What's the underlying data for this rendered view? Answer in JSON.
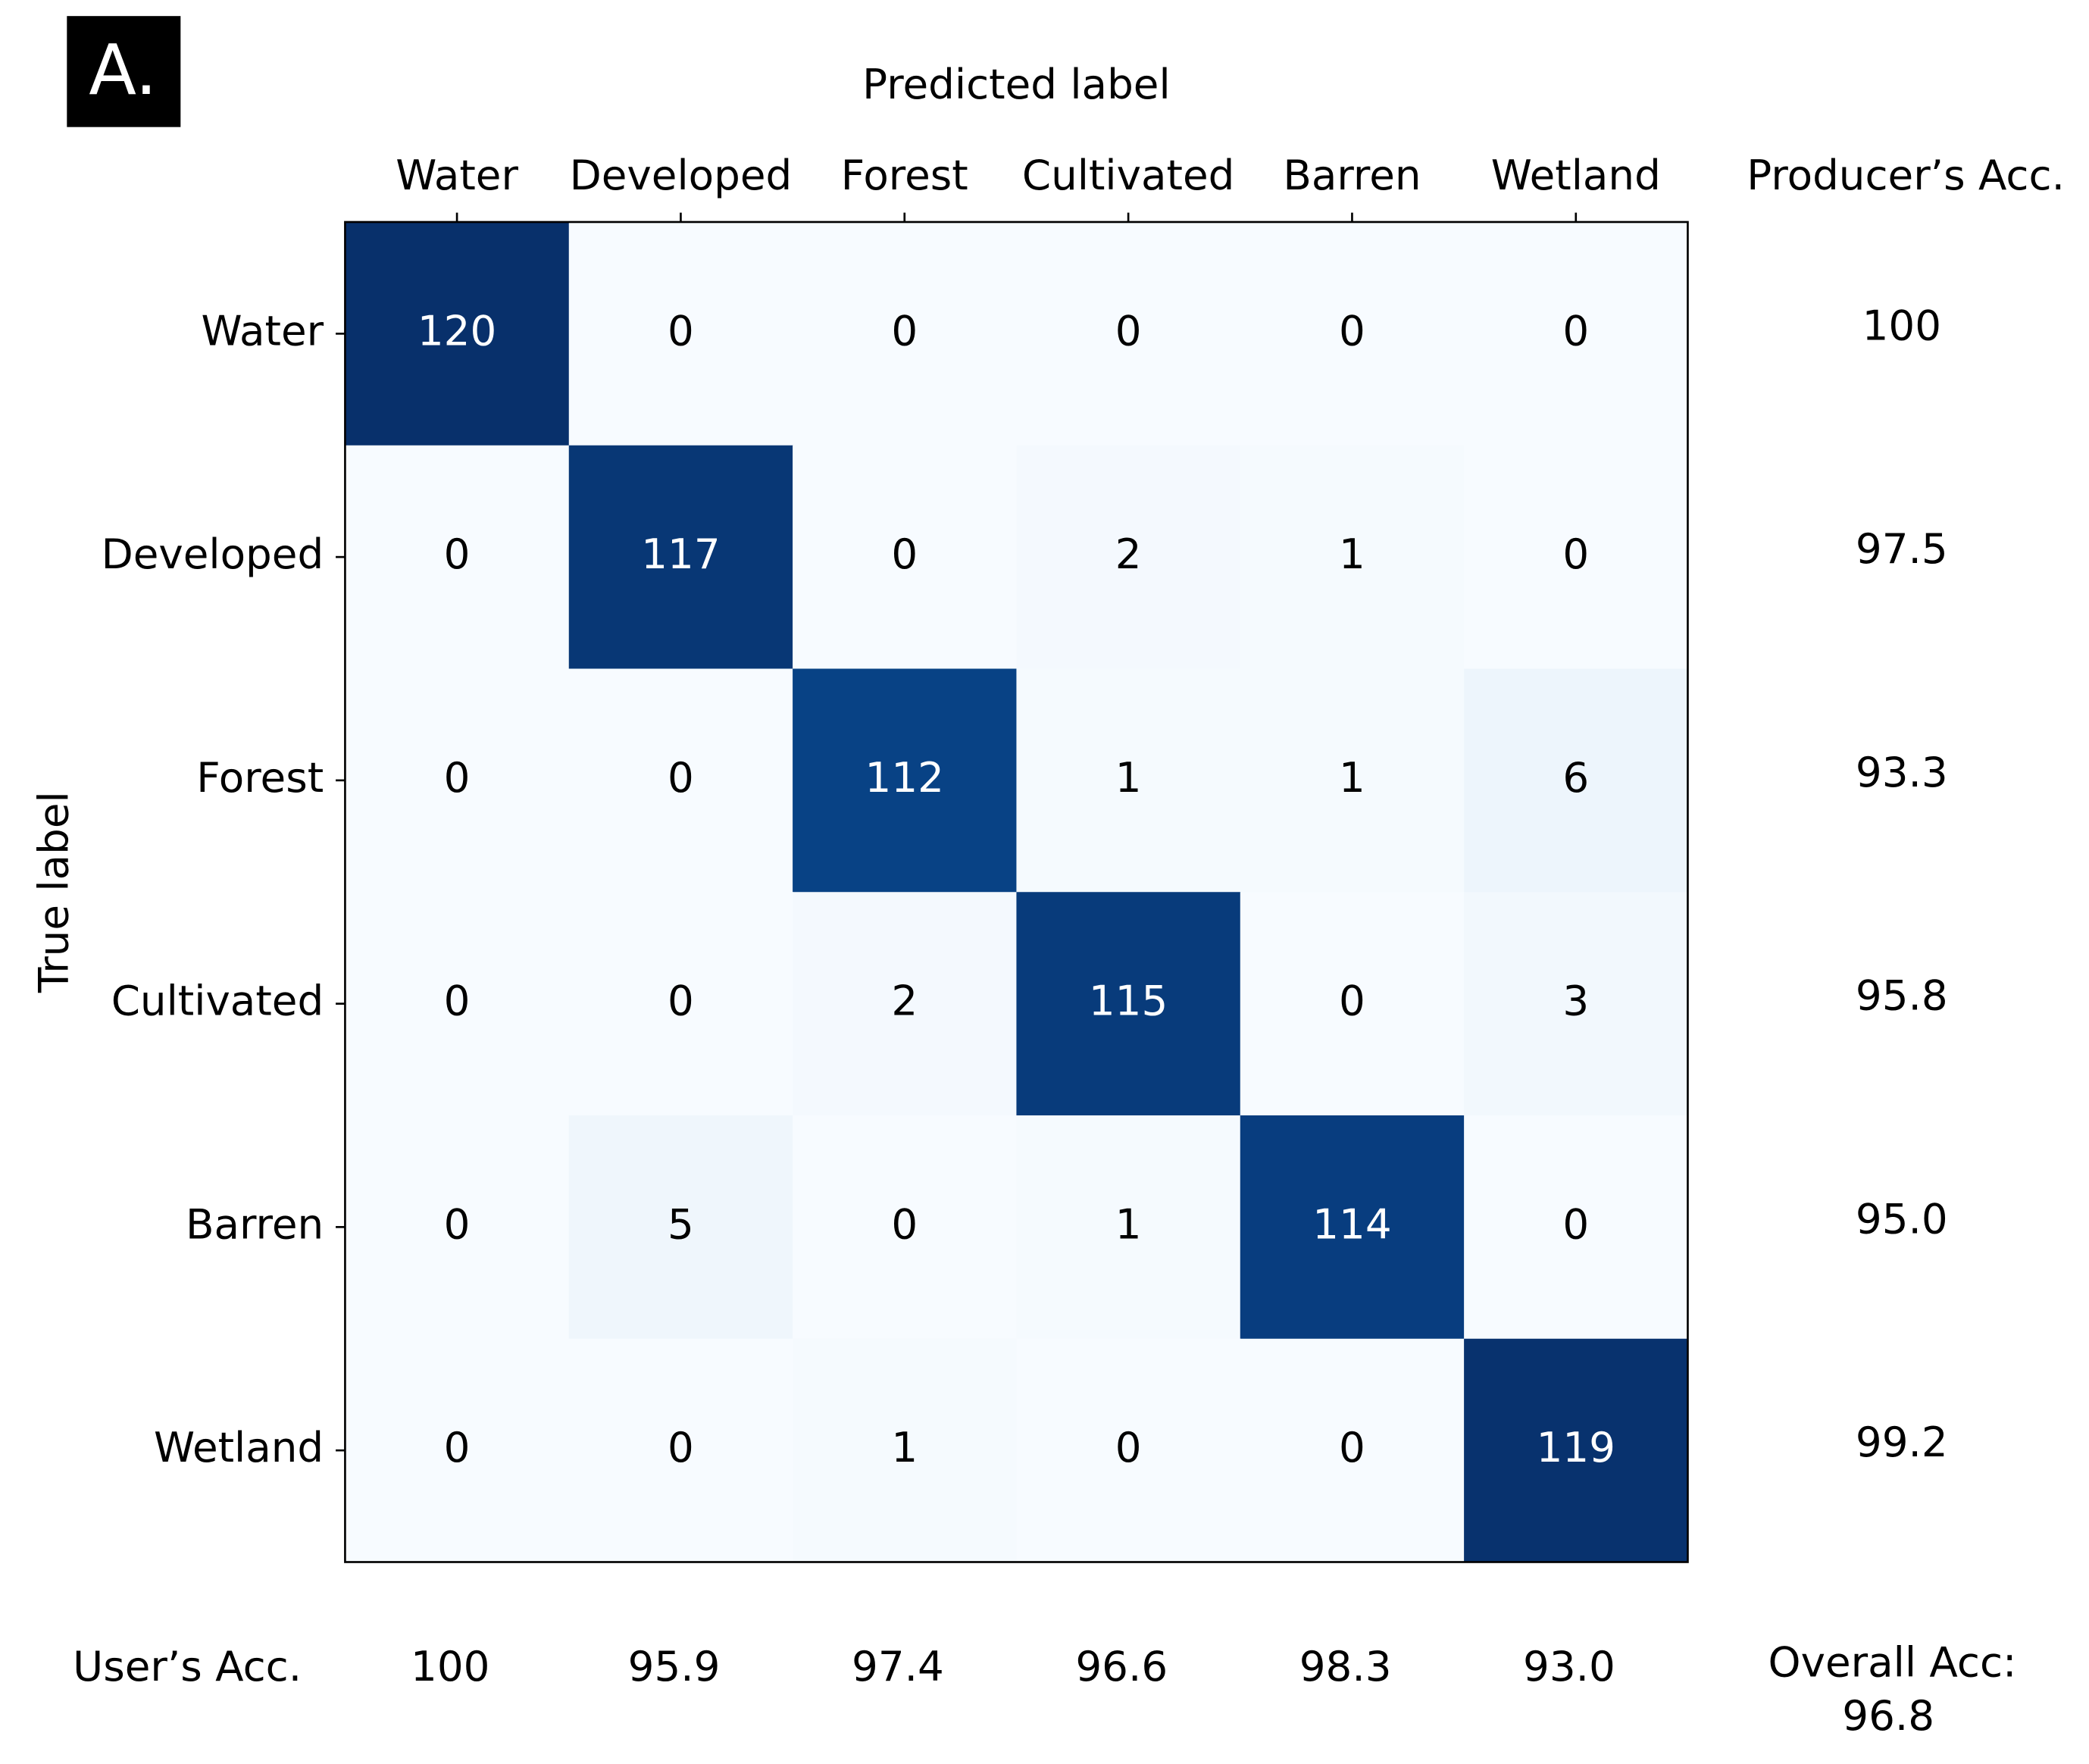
{
  "chart_data": {
    "type": "heatmap",
    "panel_label": "A.",
    "x_label": "Predicted label",
    "y_label": "True label",
    "colormap": "Blues",
    "columns": [
      "Water",
      "Developed",
      "Forest",
      "Cultivated",
      "Barren",
      "Wetland"
    ],
    "rows": [
      "Water",
      "Developed",
      "Forest",
      "Cultivated",
      "Barren",
      "Wetland"
    ],
    "matrix": [
      [
        120,
        0,
        0,
        0,
        0,
        0
      ],
      [
        0,
        117,
        0,
        2,
        1,
        0
      ],
      [
        0,
        0,
        112,
        1,
        1,
        6
      ],
      [
        0,
        0,
        2,
        115,
        0,
        3
      ],
      [
        0,
        5,
        0,
        1,
        114,
        0
      ],
      [
        0,
        0,
        1,
        0,
        0,
        119
      ]
    ],
    "producers_acc": {
      "title": "Producer’s Acc.",
      "values": [
        100,
        97.5,
        93.3,
        95.8,
        95.0,
        99.2
      ],
      "value_labels": [
        "100",
        "97.5",
        "93.3",
        "95.8",
        "95.0",
        "99.2"
      ]
    },
    "users_acc": {
      "title": "User’s Acc.",
      "values": [
        100,
        95.9,
        97.4,
        96.6,
        98.3,
        93.0
      ],
      "value_labels": [
        "100",
        "95.9",
        "97.4",
        "96.6",
        "98.3",
        "93.0"
      ]
    },
    "overall_acc": {
      "title": "Overall Acc:",
      "value": 96.8
    }
  }
}
